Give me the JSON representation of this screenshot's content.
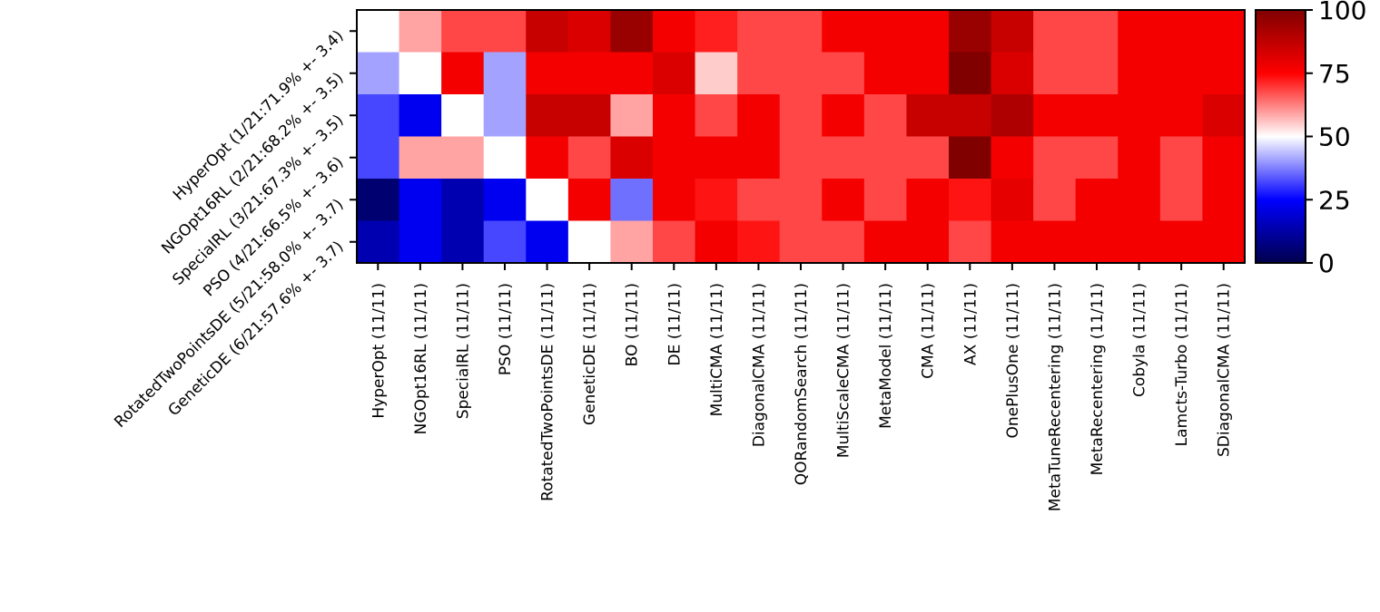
{
  "chart_data": {
    "type": "heatmap",
    "title": "",
    "xlabel": "",
    "ylabel": "",
    "row_labels": [
      "HyperOpt (1/21:71.9% +- 3.4)",
      "NGOpt16RL (2/21:68.2% +- 3.5)",
      "SpecialRL (3/21:67.3% +- 3.5)",
      "PSO (4/21:66.5% +- 3.6)",
      "RotatedTwoPointsDE (5/21:58.0% +- 3.7)",
      "GeneticDE (6/21:57.6% +- 3.7)"
    ],
    "column_labels": [
      "HyperOpt (11/11)",
      "NGOpt16RL (11/11)",
      "SpecialRL (11/11)",
      "PSO (11/11)",
      "RotatedTwoPointsDE (11/11)",
      "GeneticDE (11/11)",
      "BO (11/11)",
      "DE (11/11)",
      "MultiCMA (11/11)",
      "DiagonalCMA (11/11)",
      "QORandomSearch (11/11)",
      "MultiScaleCMA (11/11)",
      "MetaModel (11/11)",
      "CMA (11/11)",
      "AX (11/11)",
      "OnePlusOne (11/11)",
      "MetaTuneRecentering (11/11)",
      "MetaRecentering (11/11)",
      "Cobyla (11/11)",
      "Lamcts-Turbo (11/11)",
      "SDiagonalCMA (11/11)"
    ],
    "values": [
      [
        50,
        59,
        68,
        68,
        86,
        82,
        95,
        77,
        72,
        68,
        68,
        77,
        77,
        77,
        95,
        86,
        68,
        68,
        77,
        77,
        77
      ],
      [
        41,
        50,
        77,
        41,
        77,
        77,
        77,
        82,
        55,
        68,
        68,
        68,
        77,
        77,
        100,
        82,
        68,
        68,
        77,
        77,
        77
      ],
      [
        32,
        23,
        50,
        41,
        86,
        86,
        59,
        77,
        68,
        77,
        68,
        77,
        68,
        86,
        86,
        91,
        77,
        77,
        77,
        77,
        82
      ],
      [
        32,
        59,
        59,
        50,
        77,
        68,
        82,
        77,
        77,
        77,
        68,
        68,
        68,
        68,
        100,
        77,
        68,
        68,
        77,
        68,
        77
      ],
      [
        5,
        23,
        14,
        23,
        50,
        77,
        36,
        77,
        73,
        68,
        68,
        77,
        68,
        77,
        73,
        80,
        68,
        77,
        77,
        68,
        77
      ],
      [
        14,
        23,
        14,
        32,
        23,
        50,
        59,
        68,
        77,
        73,
        68,
        68,
        77,
        77,
        68,
        77,
        77,
        77,
        77,
        77,
        77
      ]
    ],
    "colormap": "seismic",
    "colorbar": {
      "range": [
        0,
        100
      ],
      "ticks": [
        "0",
        "25",
        "50",
        "75",
        "100"
      ],
      "position": "right"
    },
    "grid": false
  }
}
